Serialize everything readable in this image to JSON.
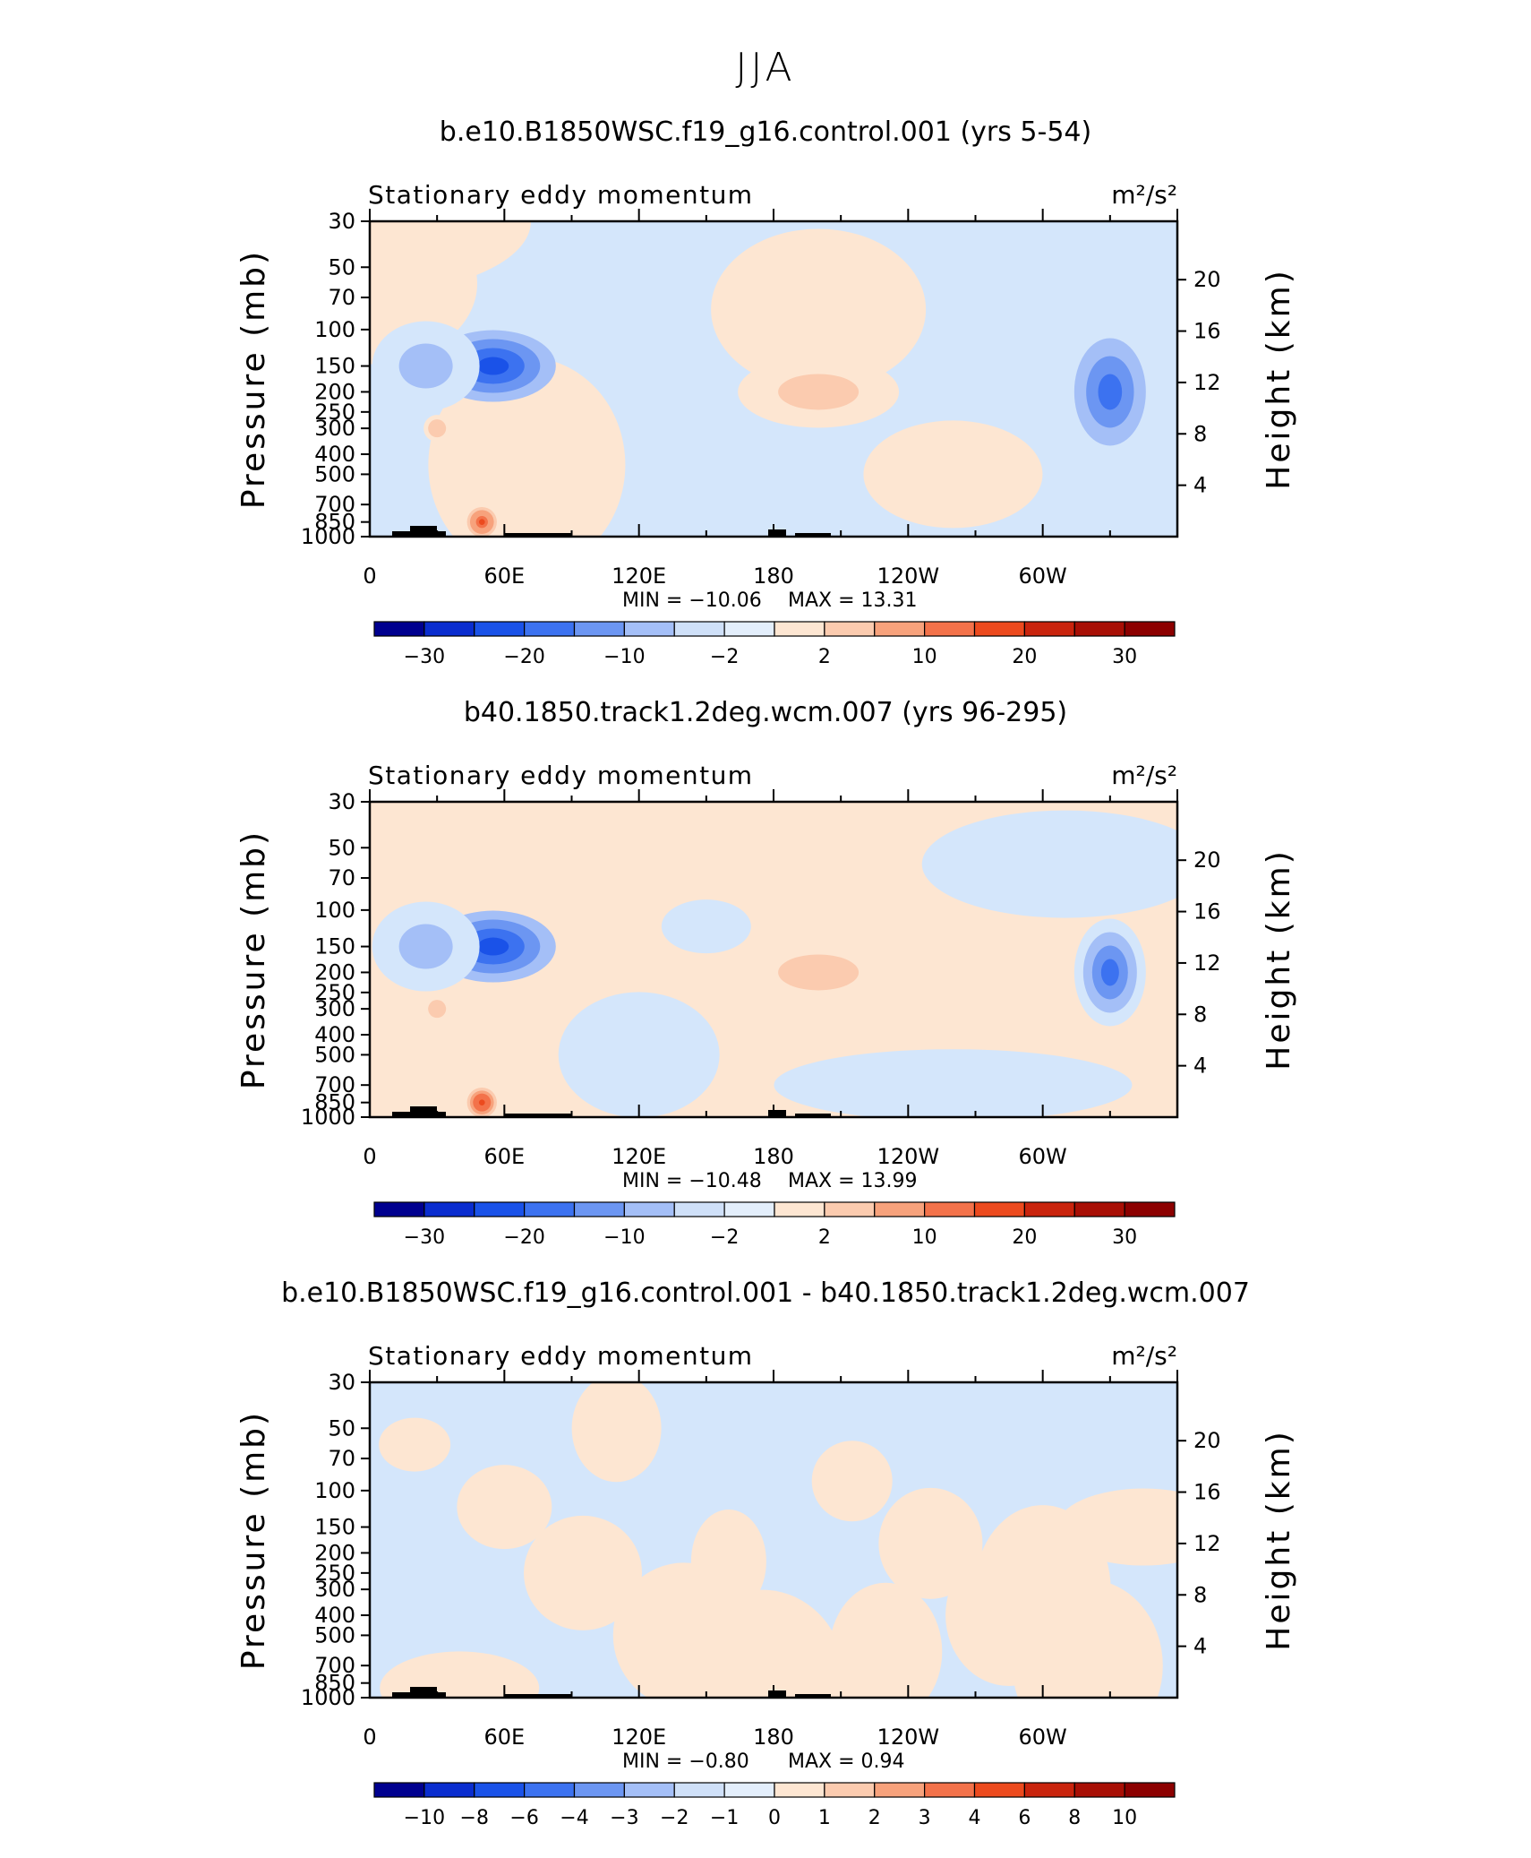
{
  "figure": {
    "season_title": "JJA"
  },
  "colors": {
    "levels_negative": [
      "#00008f",
      "#0a2dcf",
      "#1a52e8",
      "#3c72f0",
      "#6c96f2",
      "#a4bff7",
      "#d4e6fb"
    ],
    "levels_positive": [
      "#fde6d2",
      "#fbcbaf",
      "#f7a27c",
      "#f3724a",
      "#ec4a1e",
      "#c9240d",
      "#8c0000"
    ],
    "topography": "#000000"
  },
  "chart_data": [
    {
      "type": "heatmap",
      "title": "b.e10.B1850WSC.f19_g16.control.001 (yrs 5-54)",
      "left_string": "Stationary eddy momentum",
      "units": "m²/s²",
      "ylabel": "Pressure (mb)",
      "y2label": "Height (km)",
      "x_ticks": [
        "0",
        "60E",
        "120E",
        "180",
        "120W",
        "60W"
      ],
      "y_ticks": [
        "30",
        "50",
        "70",
        "100",
        "150",
        "200",
        "250",
        "300",
        "400",
        "500",
        "700",
        "850",
        "1000"
      ],
      "y2_ticks": [
        "20",
        "16",
        "12",
        "8",
        "4"
      ],
      "min_text": "MIN = −10.06",
      "max_text": "MAX =   13.31",
      "min": -10.06,
      "max": 13.31,
      "colorbar_labels": [
        "−30",
        "−20",
        "−10",
        "−2",
        "2",
        "10",
        "20",
        "30"
      ],
      "colorbar_levels": [
        -40,
        -30,
        -25,
        -20,
        -15,
        -10,
        -5,
        -2,
        2,
        5,
        10,
        15,
        20,
        25,
        30
      ],
      "background_level": "negative",
      "features": [
        {
          "lon": 0,
          "p": 30,
          "value": 1,
          "w": 180,
          "h": 80
        },
        {
          "lon": 55,
          "p": 150,
          "value": -8,
          "w": 70,
          "h": 40
        },
        {
          "lon": 25,
          "p": 150,
          "value": -3,
          "w": 60,
          "h": 50
        },
        {
          "lon": 200,
          "p": 200,
          "value": 3,
          "w": 90,
          "h": 40
        },
        {
          "lon": 330,
          "p": 200,
          "value": -6,
          "w": 40,
          "h": 60
        },
        {
          "lon": 50,
          "p": 850,
          "value": 13,
          "w": 20,
          "h": 20
        },
        {
          "lon": 30,
          "p": 300,
          "value": 5,
          "w": 15,
          "h": 15
        }
      ]
    },
    {
      "type": "heatmap",
      "title": "b40.1850.track1.2deg.wcm.007 (yrs 96-295)",
      "left_string": "Stationary eddy momentum",
      "units": "m²/s²",
      "ylabel": "Pressure (mb)",
      "y2label": "Height (km)",
      "x_ticks": [
        "0",
        "60E",
        "120E",
        "180",
        "120W",
        "60W"
      ],
      "y_ticks": [
        "30",
        "50",
        "70",
        "100",
        "150",
        "200",
        "250",
        "300",
        "400",
        "500",
        "700",
        "850",
        "1000"
      ],
      "y2_ticks": [
        "20",
        "16",
        "12",
        "8",
        "4"
      ],
      "min_text": "MIN = −10.48",
      "max_text": "MAX =   13.99",
      "min": -10.48,
      "max": 13.99,
      "colorbar_labels": [
        "−30",
        "−20",
        "−10",
        "−2",
        "2",
        "10",
        "20",
        "30"
      ],
      "colorbar_levels": [
        -40,
        -30,
        -25,
        -20,
        -15,
        -10,
        -5,
        -2,
        2,
        5,
        10,
        15,
        20,
        25,
        30
      ],
      "background_level": "positive",
      "features": [
        {
          "lon": 55,
          "p": 150,
          "value": -8,
          "w": 70,
          "h": 40
        },
        {
          "lon": 25,
          "p": 150,
          "value": -3,
          "w": 60,
          "h": 50
        },
        {
          "lon": 200,
          "p": 200,
          "value": 3,
          "w": 90,
          "h": 40
        },
        {
          "lon": 330,
          "p": 200,
          "value": -7,
          "w": 40,
          "h": 60
        },
        {
          "lon": 50,
          "p": 850,
          "value": 14,
          "w": 20,
          "h": 20
        },
        {
          "lon": 30,
          "p": 300,
          "value": 5,
          "w": 15,
          "h": 15
        }
      ]
    },
    {
      "type": "heatmap",
      "title": "b.e10.B1850WSC.f19_g16.control.001 - b40.1850.track1.2deg.wcm.007",
      "left_string": "Stationary eddy momentum",
      "units": "m²/s²",
      "ylabel": "Pressure (mb)",
      "y2label": "Height (km)",
      "x_ticks": [
        "0",
        "60E",
        "120E",
        "180",
        "120W",
        "60W"
      ],
      "y_ticks": [
        "30",
        "50",
        "70",
        "100",
        "150",
        "200",
        "250",
        "300",
        "400",
        "500",
        "700",
        "850",
        "1000"
      ],
      "y2_ticks": [
        "20",
        "16",
        "12",
        "8",
        "4"
      ],
      "min_text": "MIN =   −0.80",
      "max_text": "MAX =     0.94",
      "min": -0.8,
      "max": 0.94,
      "colorbar_labels": [
        "−10",
        "−8",
        "−6",
        "−4",
        "−3",
        "−2",
        "−1",
        "0",
        "1",
        "2",
        "3",
        "4",
        "6",
        "8",
        "10"
      ],
      "colorbar_levels": [
        -10,
        -8,
        -6,
        -4,
        -3,
        -2,
        -1,
        0,
        1,
        2,
        3,
        4,
        6,
        8,
        10
      ],
      "background_level": "mixed",
      "features": []
    }
  ]
}
